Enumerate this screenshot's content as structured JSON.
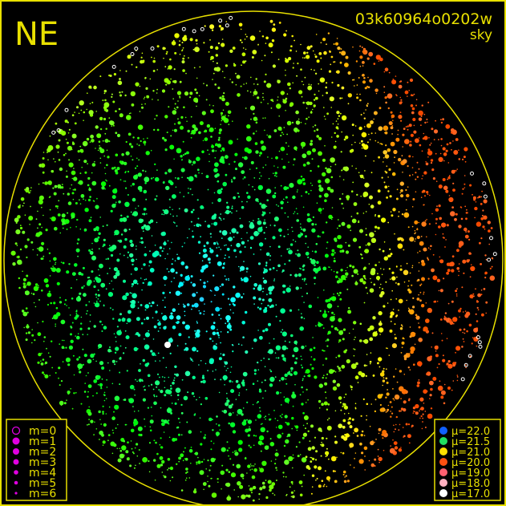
{
  "chart_data": {
    "type": "scatter",
    "title": "03k60964o0202w",
    "subtitle": "sky",
    "corner_label": "NE",
    "grid": false,
    "frame_color": "#e8e000",
    "magnitude_legend": {
      "placement": "bottom-left",
      "color": "#e000e0",
      "entries": [
        {
          "label": "m=0",
          "marker": "ring"
        },
        {
          "label": "m=1",
          "marker": "dot"
        },
        {
          "label": "m=2",
          "marker": "dot"
        },
        {
          "label": "m=3",
          "marker": "dot"
        },
        {
          "label": "m=4",
          "marker": "dot"
        },
        {
          "label": "m=5",
          "marker": "dot"
        },
        {
          "label": "m=6",
          "marker": "dot"
        }
      ]
    },
    "sky_brightness_legend": {
      "placement": "bottom-right",
      "entries": [
        {
          "label": "μ=22.0",
          "color": "#1060ff"
        },
        {
          "label": "μ=21.5",
          "color": "#20e060"
        },
        {
          "label": "μ=21.0",
          "color": "#ffe000"
        },
        {
          "label": "μ=20.0",
          "color": "#ff5010"
        },
        {
          "label": "μ=19.0",
          "color": "#ff6070"
        },
        {
          "label": "μ=18.0",
          "color": "#ffb0c0"
        },
        {
          "label": "μ=17.0",
          "color": "#ffffff"
        }
      ]
    }
  }
}
